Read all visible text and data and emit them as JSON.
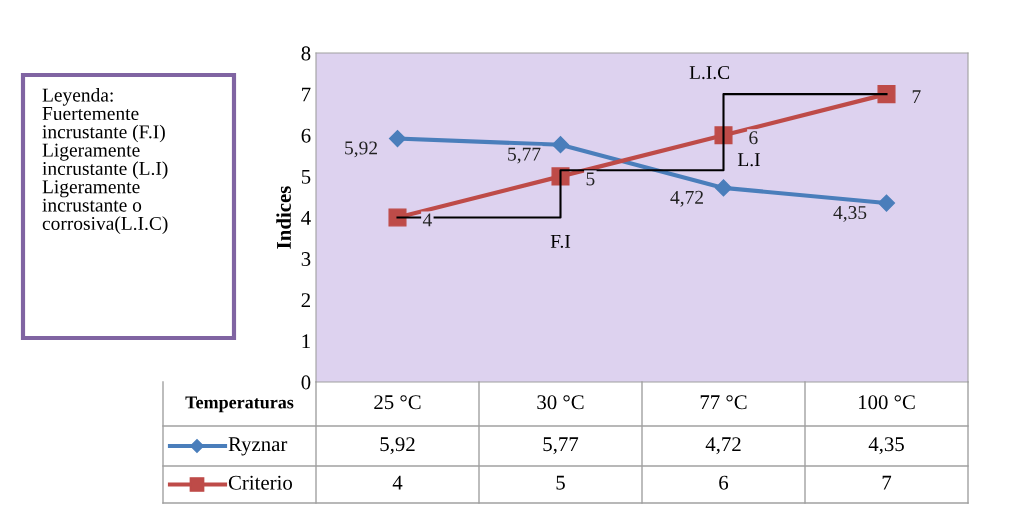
{
  "chart_data": {
    "type": "line",
    "ylabel": "Indices",
    "xlabel": "Temperaturas",
    "categories": [
      "25 °C",
      "30 °C",
      "77 °C",
      "100 °C"
    ],
    "series": [
      {
        "name": "Ryznar",
        "color": "#4a7ebb",
        "values": [
          5.92,
          5.77,
          4.72,
          4.35
        ],
        "marker": "diamond",
        "value_labels": [
          "5,92",
          "5,77",
          "4,72",
          "4,35"
        ]
      },
      {
        "name": "Criterio",
        "color": "#be4b48",
        "values": [
          4,
          5,
          6,
          7
        ],
        "marker": "square",
        "value_labels": [
          "4",
          "5",
          "6",
          "7"
        ]
      },
      {
        "type": "step",
        "color": "#000000",
        "values": [
          4,
          5.15,
          7,
          7
        ],
        "marker": "none"
      }
    ],
    "ylim": [
      0,
      8
    ],
    "yticks": [
      0,
      1,
      2,
      3,
      4,
      5,
      6,
      7,
      8
    ],
    "grid": false,
    "legend": "bottom left",
    "annotations": [
      {
        "text": "F.I",
        "x": "30 °C",
        "y": 4
      },
      {
        "text": "L.I",
        "x": "77 °C",
        "y": 5.15
      },
      {
        "text": "L.I.C",
        "x": "77 °C",
        "y": 7
      },
      "Leyenda:\nFuertemente\nincrustante (F.I)\nLigeramente\nincrustante (L.I)\nLigeramente\nincrustante o\ncorrosiva(L.I.C)"
    ]
  }
}
